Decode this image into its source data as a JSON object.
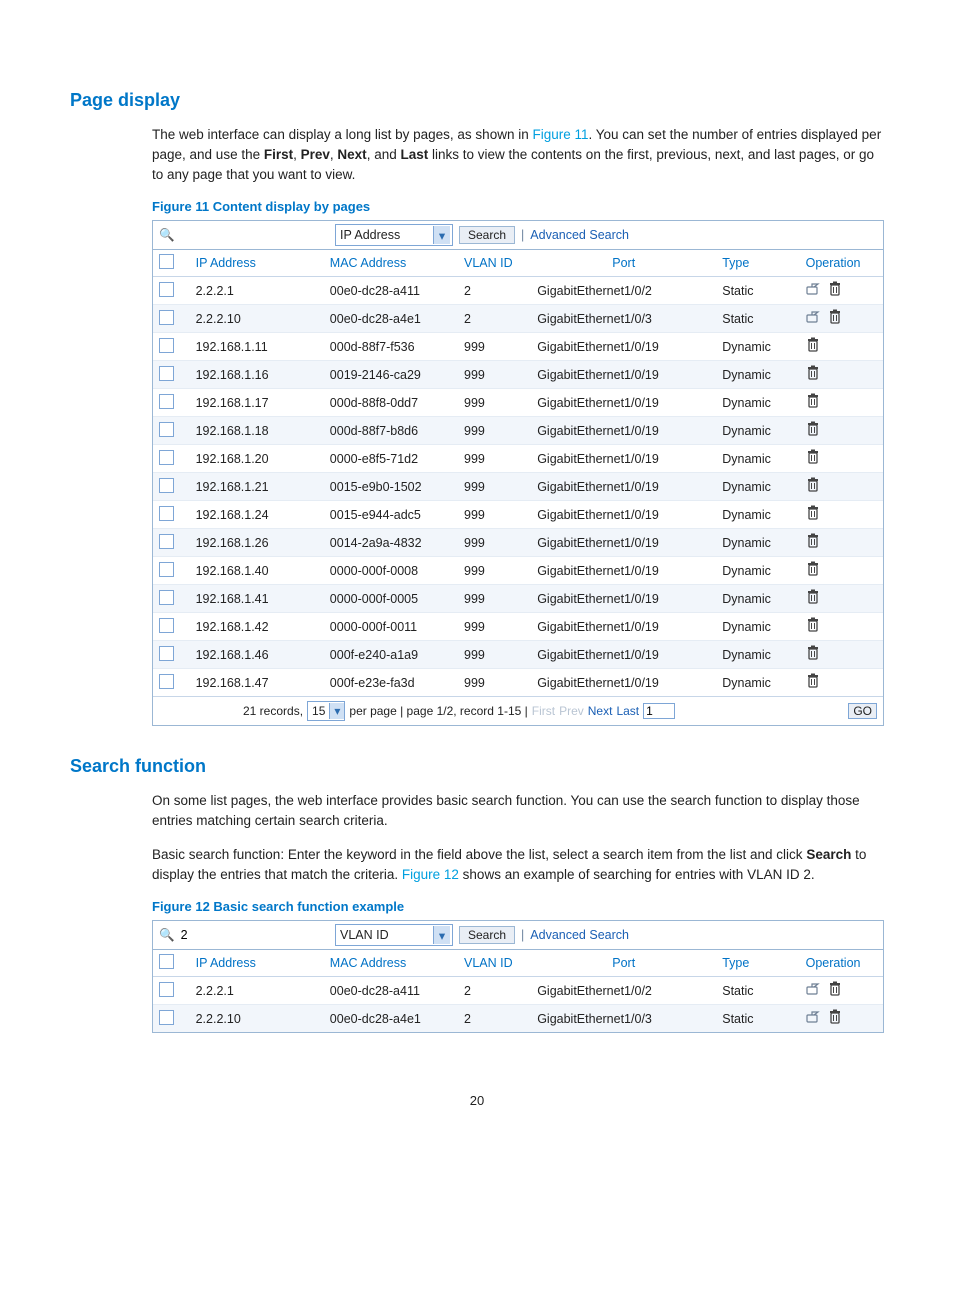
{
  "page_number": "20",
  "section1": {
    "heading": "Page display",
    "para_parts": [
      "The web interface can display a long list by pages, as shown in ",
      "Figure 11",
      ". You can set the number of entries displayed per page, and use the ",
      "First",
      ", ",
      "Prev",
      ", ",
      "Next",
      ", and ",
      "Last",
      " links to view the contents on the first, previous, next, and last pages, or go to any page that you want to view."
    ],
    "figcap": "Figure 11 Content display by pages"
  },
  "section2": {
    "heading": "Search function",
    "para1": "On some list pages, the web interface provides basic search function. You can use the search function to display those entries matching certain search criteria.",
    "para2_parts": [
      "Basic search function: Enter the keyword in the field above the list, select a search item from the list and click ",
      "Search",
      " to display the entries that match the criteria. ",
      "Figure 12",
      " shows an example of searching for entries with VLAN ID 2."
    ],
    "figcap": "Figure 12 Basic search function example"
  },
  "fig11": {
    "search_value": "",
    "dropdown": "IP Address",
    "search_btn": "Search",
    "adv": "Advanced Search",
    "cols": [
      "IP Address",
      "MAC Address",
      "VLAN ID",
      "Port",
      "Type",
      "Operation"
    ],
    "rows": [
      {
        "ip": "2.2.2.1",
        "mac": "00e0-dc28-a411",
        "vlan": "2",
        "port": "GigabitEthernet1/0/2",
        "type": "Static",
        "edit": true
      },
      {
        "ip": "2.2.2.10",
        "mac": "00e0-dc28-a4e1",
        "vlan": "2",
        "port": "GigabitEthernet1/0/3",
        "type": "Static",
        "edit": true
      },
      {
        "ip": "192.168.1.11",
        "mac": "000d-88f7-f536",
        "vlan": "999",
        "port": "GigabitEthernet1/0/19",
        "type": "Dynamic",
        "edit": false
      },
      {
        "ip": "192.168.1.16",
        "mac": "0019-2146-ca29",
        "vlan": "999",
        "port": "GigabitEthernet1/0/19",
        "type": "Dynamic",
        "edit": false
      },
      {
        "ip": "192.168.1.17",
        "mac": "000d-88f8-0dd7",
        "vlan": "999",
        "port": "GigabitEthernet1/0/19",
        "type": "Dynamic",
        "edit": false
      },
      {
        "ip": "192.168.1.18",
        "mac": "000d-88f7-b8d6",
        "vlan": "999",
        "port": "GigabitEthernet1/0/19",
        "type": "Dynamic",
        "edit": false
      },
      {
        "ip": "192.168.1.20",
        "mac": "0000-e8f5-71d2",
        "vlan": "999",
        "port": "GigabitEthernet1/0/19",
        "type": "Dynamic",
        "edit": false
      },
      {
        "ip": "192.168.1.21",
        "mac": "0015-e9b0-1502",
        "vlan": "999",
        "port": "GigabitEthernet1/0/19",
        "type": "Dynamic",
        "edit": false
      },
      {
        "ip": "192.168.1.24",
        "mac": "0015-e944-adc5",
        "vlan": "999",
        "port": "GigabitEthernet1/0/19",
        "type": "Dynamic",
        "edit": false
      },
      {
        "ip": "192.168.1.26",
        "mac": "0014-2a9a-4832",
        "vlan": "999",
        "port": "GigabitEthernet1/0/19",
        "type": "Dynamic",
        "edit": false
      },
      {
        "ip": "192.168.1.40",
        "mac": "0000-000f-0008",
        "vlan": "999",
        "port": "GigabitEthernet1/0/19",
        "type": "Dynamic",
        "edit": false
      },
      {
        "ip": "192.168.1.41",
        "mac": "0000-000f-0005",
        "vlan": "999",
        "port": "GigabitEthernet1/0/19",
        "type": "Dynamic",
        "edit": false
      },
      {
        "ip": "192.168.1.42",
        "mac": "0000-000f-0011",
        "vlan": "999",
        "port": "GigabitEthernet1/0/19",
        "type": "Dynamic",
        "edit": false
      },
      {
        "ip": "192.168.1.46",
        "mac": "000f-e240-a1a9",
        "vlan": "999",
        "port": "GigabitEthernet1/0/19",
        "type": "Dynamic",
        "edit": false
      },
      {
        "ip": "192.168.1.47",
        "mac": "000f-e23e-fa3d",
        "vlan": "999",
        "port": "GigabitEthernet1/0/19",
        "type": "Dynamic",
        "edit": false
      }
    ],
    "pager": {
      "records_prefix": "21 records,",
      "per_page_value": "15",
      "per_page_text": "per page | page 1/2, record 1-15 |",
      "first": "First",
      "prev": "Prev",
      "next": "Next",
      "last": "Last",
      "page_input": "1",
      "go": "GO"
    }
  },
  "fig12": {
    "search_value": "2",
    "dropdown": "VLAN ID",
    "search_btn": "Search",
    "adv": "Advanced Search",
    "cols": [
      "IP Address",
      "MAC Address",
      "VLAN ID",
      "Port",
      "Type",
      "Operation"
    ],
    "rows": [
      {
        "ip": "2.2.2.1",
        "mac": "00e0-dc28-a411",
        "vlan": "2",
        "port": "GigabitEthernet1/0/2",
        "type": "Static",
        "edit": true
      },
      {
        "ip": "2.2.2.10",
        "mac": "00e0-dc28-a4e1",
        "vlan": "2",
        "port": "GigabitEthernet1/0/3",
        "type": "Static",
        "edit": true
      }
    ]
  },
  "icons": {
    "search_glyph": "🔍",
    "chev": "▾",
    "sep": "|"
  }
}
